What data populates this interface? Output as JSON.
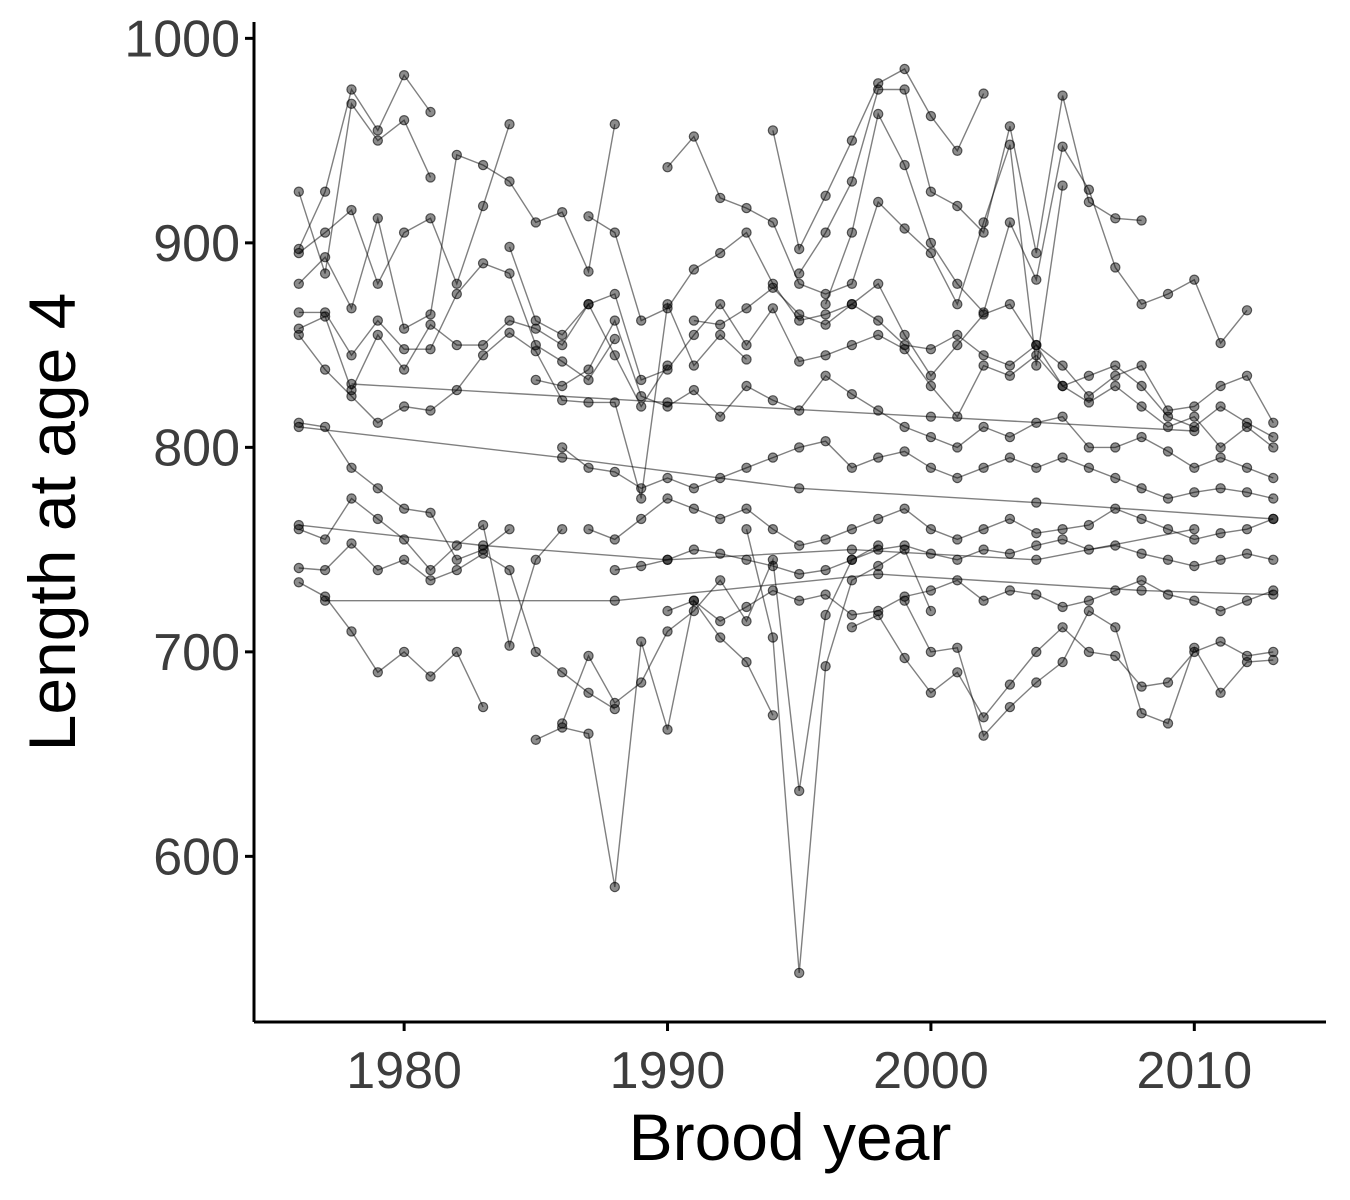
{
  "chart_data": {
    "type": "line",
    "xlabel": "Brood year",
    "ylabel": "Length at age 4",
    "xlim": [
      1974.3,
      2015.0
    ],
    "ylim": [
      519,
      1008
    ],
    "x_ticks": [
      1980,
      1990,
      2000,
      2010
    ],
    "y_ticks": [
      600,
      700,
      800,
      900,
      1000
    ],
    "grid": false,
    "legend": "none",
    "point_color": "#000000",
    "line_color": "#000000",
    "series": [
      {
        "x": [
          1976,
          1977,
          1978,
          1979,
          1980,
          1981
        ],
        "y": [
          925,
          885,
          968,
          950,
          960,
          932
        ]
      },
      {
        "x": [
          1976,
          1977,
          1978,
          1979,
          1980,
          1981
        ],
        "y": [
          897,
          925,
          975,
          955,
          982,
          964
        ]
      },
      {
        "x": [
          1976,
          1977,
          1978,
          1979,
          1980,
          1981,
          1982,
          1983,
          1984
        ],
        "y": [
          895,
          905,
          916,
          880,
          905,
          912,
          880,
          918,
          958
        ]
      },
      {
        "x": [
          1976,
          1977,
          1978,
          1979,
          1980,
          1981,
          1982,
          1983,
          1984,
          1985,
          1986,
          1987,
          1988
        ],
        "y": [
          880,
          893,
          868,
          912,
          858,
          865,
          943,
          938,
          930,
          910,
          915,
          886,
          958
        ]
      },
      {
        "x": [
          1976,
          1977,
          1978,
          1979,
          1980,
          1981,
          1982,
          1983,
          1984,
          1985,
          1986,
          1987,
          1988
        ],
        "y": [
          866,
          866,
          845,
          862,
          848,
          848,
          875,
          890,
          885,
          850,
          842,
          833,
          853
        ]
      },
      {
        "x": [
          1976,
          1977,
          1978,
          1979,
          1980,
          1981,
          1982,
          1983,
          1984,
          1985,
          1986,
          1987,
          1988,
          1989,
          1990
        ],
        "y": [
          858,
          864,
          828,
          855,
          838,
          860,
          850,
          850,
          862,
          858,
          850,
          870,
          845,
          820,
          840
        ]
      },
      {
        "x": [
          1976,
          1977,
          1978,
          1979,
          1980,
          1981,
          1982,
          1983,
          1984,
          1985,
          1986,
          1987,
          1988,
          1989,
          1990,
          1991,
          1992,
          1993
        ],
        "y": [
          855,
          838,
          825,
          812,
          820,
          818,
          828,
          845,
          856,
          847,
          823,
          822,
          822,
          775,
          870,
          840,
          855,
          843
        ]
      },
      {
        "x": [
          1976,
          1977,
          1978,
          1979,
          1980,
          1981,
          1982,
          1983,
          1984
        ],
        "y": [
          812,
          810,
          790,
          780,
          770,
          768,
          745,
          750,
          760
        ]
      },
      {
        "x": [
          1976,
          1977,
          1978,
          1979,
          1980,
          1981,
          1982,
          1983,
          1984,
          1985,
          1986
        ],
        "y": [
          760,
          755,
          775,
          765,
          755,
          740,
          752,
          762,
          703,
          745,
          760
        ]
      },
      {
        "x": [
          1976,
          1977,
          1978,
          1979,
          1980,
          1981,
          1982,
          1983,
          1984,
          1985,
          1986,
          1987,
          1988
        ],
        "y": [
          741,
          740,
          753,
          740,
          745,
          735,
          740,
          748,
          740,
          700,
          690,
          680,
          672
        ]
      },
      {
        "x": [
          1976,
          1977,
          1978,
          1979,
          1980,
          1981,
          1982,
          1983
        ],
        "y": [
          734,
          727,
          710,
          690,
          700,
          688,
          700,
          673
        ]
      },
      {
        "x": [
          1976,
          1986,
          1995,
          2004,
          2013
        ],
        "y": [
          810,
          795,
          780,
          773,
          765
        ]
      },
      {
        "x": [
          1977,
          1988,
          1998,
          2008,
          2013
        ],
        "y": [
          725,
          725,
          738,
          730,
          728
        ]
      },
      {
        "x": [
          1978,
          1990,
          2000,
          2010
        ],
        "y": [
          831,
          822,
          815,
          808
        ]
      },
      {
        "x": [
          1976,
          1983,
          1990,
          1997,
          2004,
          2010
        ],
        "y": [
          762,
          752,
          745,
          750,
          745,
          760
        ]
      },
      {
        "x": [
          1985,
          1986,
          1987,
          1988,
          1989,
          1990,
          1991,
          1992,
          1993,
          1994
        ],
        "y": [
          657,
          663,
          660,
          585,
          705,
          662,
          725,
          707,
          695,
          669
        ]
      },
      {
        "x": [
          1986,
          1987,
          1988,
          1989,
          1990,
          1991,
          1992,
          1993,
          1994,
          1995,
          1996,
          1997,
          1998
        ],
        "y": [
          665,
          698,
          675,
          685,
          710,
          720,
          735,
          715,
          745,
          632,
          718,
          745,
          752
        ]
      },
      {
        "x": [
          1993,
          1994,
          1995,
          1996,
          1997,
          1998,
          1999,
          2000
        ],
        "y": [
          760,
          707,
          543,
          693,
          735,
          742,
          750,
          720
        ]
      },
      {
        "x": [
          1994,
          1995,
          1996,
          1997,
          1998,
          1999,
          2000,
          2001,
          2002
        ],
        "y": [
          955,
          897,
          923,
          950,
          978,
          985,
          962,
          945,
          973
        ]
      },
      {
        "x": [
          1995,
          1996,
          1997,
          1998,
          1999,
          2000,
          2001,
          2002,
          2003,
          2004,
          2005,
          2006,
          2007,
          2008
        ],
        "y": [
          885,
          905,
          930,
          975,
          975,
          925,
          918,
          905,
          957,
          895,
          972,
          920,
          912,
          911
        ]
      },
      {
        "x": [
          1996,
          1997,
          1998,
          1999,
          2000,
          2001,
          2002,
          2003,
          2004,
          2005,
          2006,
          2007,
          2008,
          2009,
          2010,
          2011,
          2012
        ],
        "y": [
          870,
          905,
          963,
          938,
          900,
          880,
          866,
          910,
          882,
          947,
          926,
          888,
          870,
          875,
          882,
          851,
          867
        ]
      },
      {
        "x": [
          1990,
          1991,
          1992,
          1993,
          1994,
          1995,
          1996,
          1997,
          1998,
          1999,
          2000,
          2001,
          2002,
          2003,
          2004,
          2005
        ],
        "y": [
          937,
          952,
          922,
          917,
          910,
          880,
          875,
          880,
          920,
          907,
          895,
          870,
          910,
          948,
          840,
          928
        ]
      },
      {
        "x": [
          1987,
          1988,
          1989,
          1990,
          1991,
          1992,
          1993,
          1994,
          1995,
          1996,
          1997,
          1998,
          1999,
          2000,
          2001,
          2002,
          2003,
          2004,
          2005,
          2006,
          2007,
          2008,
          2009,
          2010,
          2011,
          2012,
          2013
        ],
        "y": [
          913,
          905,
          862,
          868,
          887,
          895,
          905,
          880,
          862,
          865,
          870,
          880,
          855,
          835,
          850,
          865,
          870,
          850,
          840,
          825,
          835,
          840,
          818,
          820,
          830,
          835,
          812
        ]
      },
      {
        "x": [
          1984,
          1985,
          1986,
          1987,
          1988,
          1989,
          1990,
          1991,
          1992,
          1993,
          1994,
          1995,
          1996,
          1997,
          1998,
          1999,
          2000,
          2001,
          2002,
          2003,
          2004,
          2005,
          2006,
          2007,
          2008,
          2009,
          2010,
          2011,
          2012,
          2013
        ],
        "y": [
          898,
          862,
          855,
          870,
          875,
          833,
          838,
          855,
          870,
          850,
          868,
          842,
          845,
          850,
          855,
          848,
          830,
          815,
          840,
          835,
          845,
          830,
          822,
          830,
          820,
          810,
          815,
          800,
          810,
          800
        ]
      },
      {
        "x": [
          1985,
          1986,
          1987,
          1988,
          1989,
          1990,
          1991,
          1992,
          1993,
          1994,
          1995,
          1996,
          1997,
          1998,
          1999,
          2000,
          2001,
          2002,
          2003,
          2004,
          2005,
          2006,
          2007,
          2008,
          2009,
          2010,
          2011,
          2012,
          2013
        ],
        "y": [
          833,
          830,
          838,
          862,
          825,
          820,
          828,
          815,
          830,
          823,
          818,
          835,
          826,
          818,
          810,
          805,
          800,
          810,
          805,
          812,
          815,
          800,
          800,
          805,
          798,
          790,
          795,
          790,
          785
        ]
      },
      {
        "x": [
          1986,
          1987,
          1988,
          1989,
          1990,
          1991,
          1992,
          1993,
          1994,
          1995,
          1996,
          1997,
          1998,
          1999,
          2000,
          2001,
          2002,
          2003,
          2004,
          2005,
          2006,
          2007,
          2008,
          2009,
          2010,
          2011,
          2012,
          2013
        ],
        "y": [
          800,
          790,
          788,
          780,
          785,
          780,
          785,
          790,
          795,
          800,
          803,
          790,
          795,
          798,
          790,
          785,
          790,
          795,
          790,
          795,
          790,
          785,
          780,
          775,
          778,
          780,
          778,
          775
        ]
      },
      {
        "x": [
          1987,
          1988,
          1989,
          1990,
          1991,
          1992,
          1993,
          1994,
          1995,
          1996,
          1997,
          1998,
          1999,
          2000,
          2001,
          2002,
          2003,
          2004,
          2005,
          2006,
          2007,
          2008,
          2009,
          2010,
          2011,
          2012,
          2013
        ],
        "y": [
          760,
          755,
          765,
          775,
          770,
          765,
          770,
          760,
          752,
          755,
          760,
          765,
          770,
          760,
          755,
          760,
          765,
          758,
          760,
          762,
          770,
          765,
          760,
          755,
          758,
          760,
          765
        ]
      },
      {
        "x": [
          1988,
          1989,
          1990,
          1991,
          1992,
          1993,
          1994,
          1995,
          1996,
          1997,
          1998,
          1999,
          2000,
          2001,
          2002,
          2003,
          2004,
          2005,
          2006,
          2007,
          2008,
          2009,
          2010,
          2011,
          2012,
          2013
        ],
        "y": [
          740,
          742,
          745,
          750,
          748,
          745,
          742,
          738,
          740,
          745,
          750,
          752,
          748,
          745,
          750,
          748,
          752,
          755,
          750,
          752,
          748,
          745,
          742,
          745,
          748,
          745
        ]
      },
      {
        "x": [
          1990,
          1991,
          1992,
          1993,
          1994,
          1995,
          1996,
          1997,
          1998,
          1999,
          2000,
          2001,
          2002,
          2003,
          2004,
          2005,
          2006,
          2007,
          2008,
          2009,
          2010,
          2011,
          2012,
          2013
        ],
        "y": [
          720,
          725,
          715,
          722,
          730,
          725,
          728,
          718,
          720,
          727,
          730,
          735,
          725,
          730,
          728,
          722,
          725,
          730,
          735,
          728,
          725,
          720,
          725,
          730
        ]
      },
      {
        "x": [
          1997,
          1998,
          1999,
          2000,
          2001,
          2002,
          2003,
          2004,
          2005,
          2006,
          2007,
          2008,
          2009,
          2010,
          2011,
          2012,
          2013
        ],
        "y": [
          712,
          718,
          697,
          680,
          690,
          668,
          684,
          700,
          712,
          700,
          698,
          683,
          685,
          700,
          705,
          698,
          700
        ]
      },
      {
        "x": [
          1999,
          2000,
          2001,
          2002,
          2003,
          2004,
          2005,
          2006,
          2007,
          2008,
          2009,
          2010,
          2011,
          2012,
          2013
        ],
        "y": [
          725,
          700,
          702,
          659,
          673,
          685,
          695,
          720,
          712,
          670,
          665,
          702,
          680,
          695,
          696
        ]
      },
      {
        "x": [
          1991,
          1992,
          1993,
          1994,
          1995,
          1996,
          1997,
          1998,
          1999,
          2000,
          2001,
          2002,
          2003,
          2004,
          2005,
          2006,
          2007,
          2008,
          2009,
          2010,
          2011,
          2012,
          2013
        ],
        "y": [
          862,
          860,
          868,
          878,
          865,
          860,
          870,
          862,
          850,
          848,
          855,
          845,
          840,
          850,
          830,
          835,
          840,
          830,
          815,
          810,
          820,
          812,
          805
        ]
      }
    ]
  }
}
